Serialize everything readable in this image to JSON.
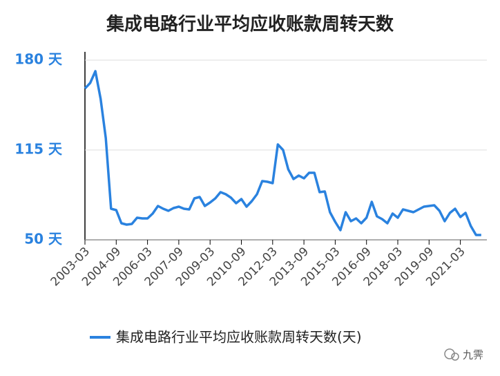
{
  "chart_data": {
    "type": "line",
    "title": "集成电路行业平均应收账款周转天数",
    "categories": [
      "2003-03",
      null,
      null,
      null,
      null,
      null,
      "2004-09",
      null,
      null,
      null,
      null,
      null,
      "2006-03",
      null,
      null,
      null,
      null,
      null,
      "2007-09",
      null,
      null,
      null,
      null,
      null,
      "2009-03",
      null,
      null,
      null,
      null,
      null,
      "2010-09",
      null,
      null,
      null,
      null,
      null,
      "2012-03",
      null,
      null,
      null,
      null,
      null,
      "2013-09",
      null,
      null,
      null,
      null,
      null,
      "2015-03",
      null,
      null,
      null,
      null,
      null,
      "2016-09",
      null,
      null,
      null,
      null,
      null,
      "2018-03",
      null,
      null,
      null,
      null,
      null,
      "2019-09",
      null,
      null,
      null,
      null,
      null,
      "2021-03",
      null,
      null,
      null,
      null
    ],
    "series": [
      {
        "name": "集成电路行业平均应收账款周转天数(天)",
        "color": "#2a82df",
        "values": [
          159.5,
          163.5,
          172,
          152,
          123.5,
          72.5,
          71.5,
          62,
          61,
          61.5,
          66,
          65.5,
          65.5,
          69,
          74.5,
          72.5,
          71,
          73,
          74,
          72.5,
          72,
          80,
          81,
          74.5,
          77,
          80,
          84.5,
          83,
          80.5,
          76.5,
          79.5,
          74,
          78,
          83,
          92.5,
          92,
          91,
          119,
          115,
          101,
          94,
          96.5,
          94.5,
          98.5,
          98.5,
          84.5,
          85,
          70,
          63,
          57,
          70,
          63.5,
          65.5,
          62,
          66,
          77.5,
          67,
          65,
          62,
          69,
          66,
          72,
          71,
          70,
          72,
          74,
          74.5,
          75,
          71,
          63.5,
          69.5,
          72.5,
          66.5,
          69.5,
          60,
          53.5,
          53.5
        ]
      }
    ],
    "ylim": [
      50,
      180
    ],
    "yticks": [
      {
        "value": 50,
        "label": "50 天"
      },
      {
        "value": 115,
        "label": "115 天"
      },
      {
        "value": 180,
        "label": "180 天"
      }
    ],
    "grid": true,
    "legend": "bottom",
    "watermark": "九霁"
  }
}
